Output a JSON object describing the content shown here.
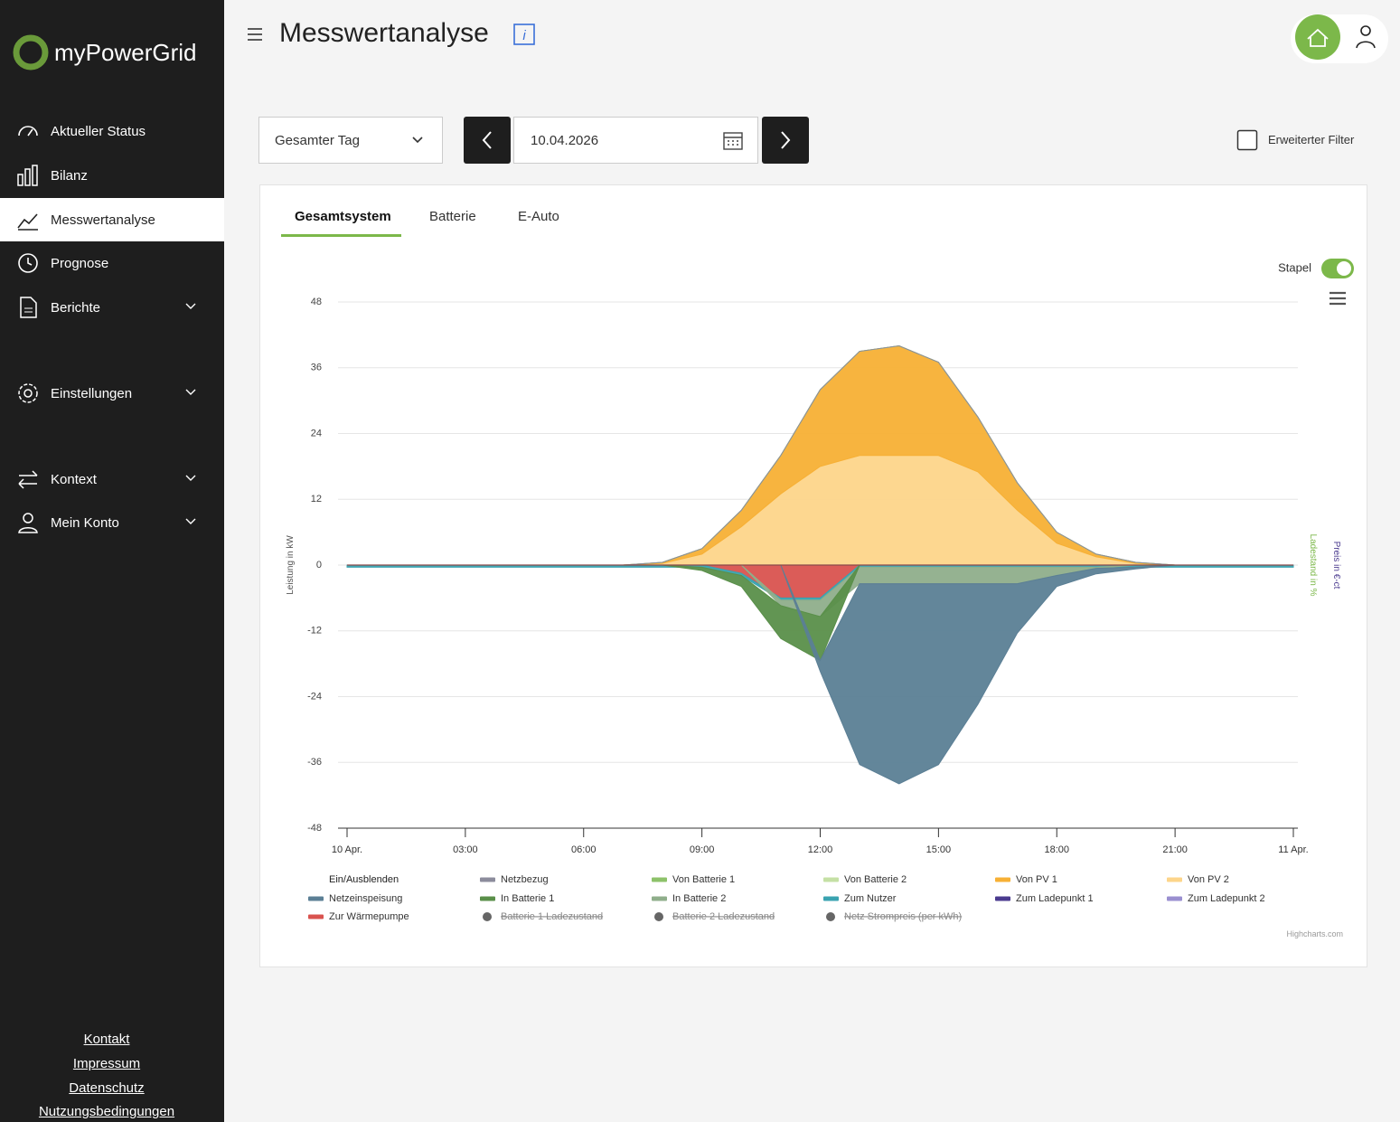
{
  "sidebar": {
    "brand": "myPowerGrid",
    "nav": [
      "Aktueller Status",
      "Bilanz",
      "Messwertanalyse",
      "Prognose",
      "Berichte",
      "Einstellungen",
      "Kontext",
      "Mein Konto"
    ],
    "footer": [
      "Kontakt",
      "Impressum",
      "Datenschutz",
      "Nutzungsbedingungen"
    ]
  },
  "header": {
    "title": "Messwertanalyse"
  },
  "controls": {
    "range": "Gesamter Tag",
    "date": "10.04.2026",
    "filter": "Erweiterter Filter"
  },
  "tabs": [
    "Gesamtsystem",
    "Batterie",
    "E-Auto"
  ],
  "stack_toggle": "Stapel",
  "chart_data": {
    "type": "area",
    "stacked": true,
    "y_label": "Leistung in kW",
    "y2_label": "Ladestand in %",
    "y3_label": "Preis in €-ct",
    "legend_title": "Ein/Ausblenden",
    "credits": "Highcharts.com",
    "grid": true,
    "x": [
      0,
      1,
      2,
      3,
      4,
      5,
      6,
      7,
      8,
      9,
      10,
      11,
      12,
      13,
      14,
      15,
      16,
      17,
      18,
      19,
      20,
      21,
      22,
      23,
      24
    ],
    "xlim": [
      0,
      24
    ],
    "xticks": [
      {
        "value": 0,
        "label": "10 Apr."
      },
      {
        "value": 3,
        "label": "03:00"
      },
      {
        "value": 6,
        "label": "06:00"
      },
      {
        "value": 9,
        "label": "09:00"
      },
      {
        "value": 12,
        "label": "12:00"
      },
      {
        "value": 15,
        "label": "15:00"
      },
      {
        "value": 18,
        "label": "18:00"
      },
      {
        "value": 21,
        "label": "21:00"
      },
      {
        "value": 24,
        "label": "11 Apr."
      }
    ],
    "ylim": [
      -48,
      48
    ],
    "yticks": [
      -48,
      -36,
      -24,
      -12,
      0,
      12,
      24,
      36,
      48
    ],
    "series": [
      {
        "name": "Netzbezug",
        "color": "#8c8c9c",
        "values": [
          0,
          0,
          0,
          0,
          0,
          0,
          0,
          0,
          0,
          0,
          0,
          0,
          0,
          0,
          0,
          0,
          0,
          0,
          0,
          0,
          0,
          0,
          0,
          0,
          0
        ]
      },
      {
        "name": "Von Batterie 1",
        "color": "#8dc26a",
        "values": [
          0,
          0,
          0,
          0,
          0,
          0,
          0,
          0,
          0,
          0,
          0,
          0,
          0,
          0,
          0,
          0,
          0,
          0,
          0,
          0,
          0,
          0,
          0,
          0,
          0
        ]
      },
      {
        "name": "Von Batterie 2",
        "color": "#c5e0a5",
        "values": [
          0,
          0,
          0,
          0,
          0,
          0,
          0,
          0,
          0,
          0,
          0,
          0,
          0,
          0,
          0,
          0,
          0,
          0,
          0,
          0,
          0,
          0,
          0,
          0,
          0
        ]
      },
      {
        "name": "Von PV 1",
        "color": "#f7b035",
        "values": [
          0,
          0,
          0,
          0,
          0,
          0,
          0,
          0,
          0.2,
          1,
          3,
          7,
          14,
          19,
          20,
          17,
          10,
          5,
          2,
          0.5,
          0.2,
          0,
          0,
          0,
          0
        ]
      },
      {
        "name": "Von PV 2",
        "color": "#fdd58a",
        "values": [
          0,
          0,
          0,
          0,
          0,
          0,
          0,
          0,
          0.3,
          2,
          7,
          13,
          18,
          20,
          20,
          20,
          17,
          10,
          4,
          1.5,
          0.3,
          0,
          0,
          0,
          0
        ]
      },
      {
        "name": "Netzeinspeisung",
        "color": "#5b7f95",
        "values": [
          0,
          0,
          0,
          0,
          0,
          0,
          0,
          0,
          0,
          0,
          0,
          0,
          -2,
          -33,
          -36.5,
          -33,
          -22,
          -9,
          -2,
          -1,
          -0.3,
          0,
          0,
          0,
          0
        ]
      },
      {
        "name": "In Batterie 1",
        "color": "#5a8f4a",
        "values": [
          0,
          0,
          0,
          0,
          0,
          0,
          0,
          0,
          0,
          -0.6,
          -2,
          -6,
          -8,
          0,
          0,
          0,
          0,
          0,
          0,
          0,
          0,
          0,
          0,
          0,
          0
        ]
      },
      {
        "name": "In Batterie 2",
        "color": "#8fae8b",
        "values": [
          0,
          0,
          0,
          0,
          0,
          0,
          0,
          0,
          0,
          0,
          0,
          -1,
          -3,
          -3,
          -3,
          -3,
          -3,
          -3,
          -1.5,
          -0.2,
          0,
          0,
          0,
          0,
          0
        ]
      },
      {
        "name": "Zum Nutzer",
        "color": "#3aa3b0",
        "values": [
          -0.4,
          -0.4,
          -0.4,
          -0.4,
          -0.4,
          -0.4,
          -0.4,
          -0.4,
          -0.4,
          -0.4,
          -0.4,
          -0.4,
          -0.4,
          -0.4,
          -0.4,
          -0.4,
          -0.4,
          -0.4,
          -0.4,
          -0.4,
          -0.4,
          -0.4,
          -0.4,
          -0.4,
          -0.4
        ]
      },
      {
        "name": "Zum Ladepunkt 1",
        "color": "#4b3b8f",
        "values": [
          0,
          0,
          0,
          0,
          0,
          0,
          0,
          0,
          0,
          0,
          0,
          0,
          0,
          0,
          0,
          0,
          0,
          0,
          0,
          0,
          0,
          0,
          0,
          0,
          0
        ]
      },
      {
        "name": "Zum Ladepunkt 2",
        "color": "#9a8fd0",
        "values": [
          0,
          0,
          0,
          0,
          0,
          0,
          0,
          0,
          0,
          0,
          0,
          0,
          0,
          0,
          0,
          0,
          0,
          0,
          0,
          0,
          0,
          0,
          0,
          0,
          0
        ]
      },
      {
        "name": "Zur Wärmepumpe",
        "color": "#d9534f",
        "values": [
          0,
          0,
          0,
          0,
          0,
          0,
          0,
          0,
          0,
          0,
          -1.5,
          -6,
          -6,
          0,
          0,
          0,
          0,
          0,
          0,
          0,
          0,
          0,
          0,
          0,
          0
        ]
      }
    ],
    "legend_hidden": [
      "Batterie 1 Ladezustand",
      "Batterie 2 Ladezustand",
      "Netz Strompreis (per kWh)"
    ]
  }
}
